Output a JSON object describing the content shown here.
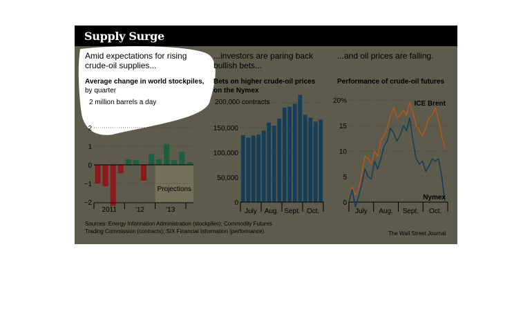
{
  "header": {
    "title": "Supply Surge"
  },
  "panel1": {
    "lead": [
      "Amid expectations for rising",
      "crude-oil supplies..."
    ],
    "subtitle": "Average change in world stockpiles,",
    "subtitle2": "by quarter",
    "unit_label": "2 million barrels a day"
  },
  "panel2": {
    "lead": [
      "...investors are paring back",
      "bullish bets..."
    ],
    "subtitle": [
      "Bets on higher crude-oil prices",
      "on the Nymex"
    ],
    "unit_label": "200,000 contracts"
  },
  "panel3": {
    "lead": [
      "...and oil prices are falling."
    ],
    "subtitle": [
      "Performance of crude-oil futures"
    ]
  },
  "footer": {
    "sources": [
      "Sources: Energy Information Administration (stockpiles); Commodity Futures",
      "Trading Commission (contracts); SIX Financial Information (performance)"
    ],
    "credit": "The Wall Street Journal"
  },
  "colors": {
    "negative": "#8b1a1f",
    "positive": "#1e5e40",
    "navy": "#173e58",
    "brent": "#b0581f",
    "background": "#5d5b4c",
    "projection_shade": "#75705c",
    "highlight": "#ffffff"
  },
  "chart_data": [
    {
      "type": "bar",
      "title": "Average change in world stockpiles, by quarter",
      "ylabel": "million barrels a day",
      "ylim": [
        -2,
        2
      ],
      "y_ticks": [
        "-2",
        "-1",
        "0",
        "1",
        "2"
      ],
      "x_tick_labels": [
        "2011",
        "'12",
        "'13"
      ],
      "projections_label": "Projections",
      "categories": [
        "2011 Q1",
        "2011 Q2",
        "2011 Q3",
        "2011 Q4",
        "2012 Q1",
        "2012 Q2",
        "2012 Q3",
        "2012 Q4",
        "2013 Q1",
        "2013 Q2",
        "2013 Q3",
        "2013 Q4",
        "2014 Q1"
      ],
      "values": [
        -1.0,
        -1.15,
        -2.2,
        -0.45,
        0.3,
        0.25,
        -0.85,
        0.6,
        0.3,
        1.1,
        0.25,
        0.7,
        0.15
      ],
      "projection_start_index": 8
    },
    {
      "type": "bar",
      "title": "Bets on higher crude-oil prices on the Nymex",
      "ylabel": "contracts",
      "ylim": [
        0,
        200000
      ],
      "y_ticks": [
        "0",
        "50,000",
        "100,000",
        "150,000",
        "200,000"
      ],
      "x_tick_labels": [
        "July",
        "Aug.",
        "Sept.",
        "Oct."
      ],
      "values": [
        135000,
        130000,
        134000,
        136000,
        144000,
        160000,
        154000,
        168000,
        190000,
        192000,
        198000,
        216000,
        176000,
        170000,
        162000,
        166000
      ]
    },
    {
      "type": "line",
      "title": "Performance of crude-oil futures",
      "ylabel": "%",
      "ylim": [
        0,
        20
      ],
      "y_ticks": [
        "0",
        "5",
        "10",
        "15",
        "20%"
      ],
      "x_tick_labels": [
        "July",
        "Aug.",
        "Sept.",
        "Oct."
      ],
      "series": [
        {
          "name": "ICE Brent",
          "values": [
            0,
            3.0,
            1.5,
            2.5,
            5.5,
            9,
            8.5,
            7.5,
            10,
            9,
            12,
            13,
            14.5,
            17,
            18.5,
            16.5,
            17,
            18,
            17,
            19.5,
            17.5,
            15,
            14,
            13,
            14.5,
            16.5,
            17,
            18.5,
            16,
            13,
            10.5
          ]
        },
        {
          "name": "Nymex",
          "values": [
            0,
            2.5,
            -1.0,
            1.0,
            3.5,
            6.5,
            5.0,
            4.5,
            8,
            6.5,
            8.5,
            11,
            12,
            14.5,
            13.5,
            12,
            13,
            15,
            14,
            16.5,
            12,
            8.5,
            7.5,
            8,
            6,
            7,
            8.5,
            8,
            8.5,
            5,
            0
          ]
        }
      ]
    }
  ]
}
